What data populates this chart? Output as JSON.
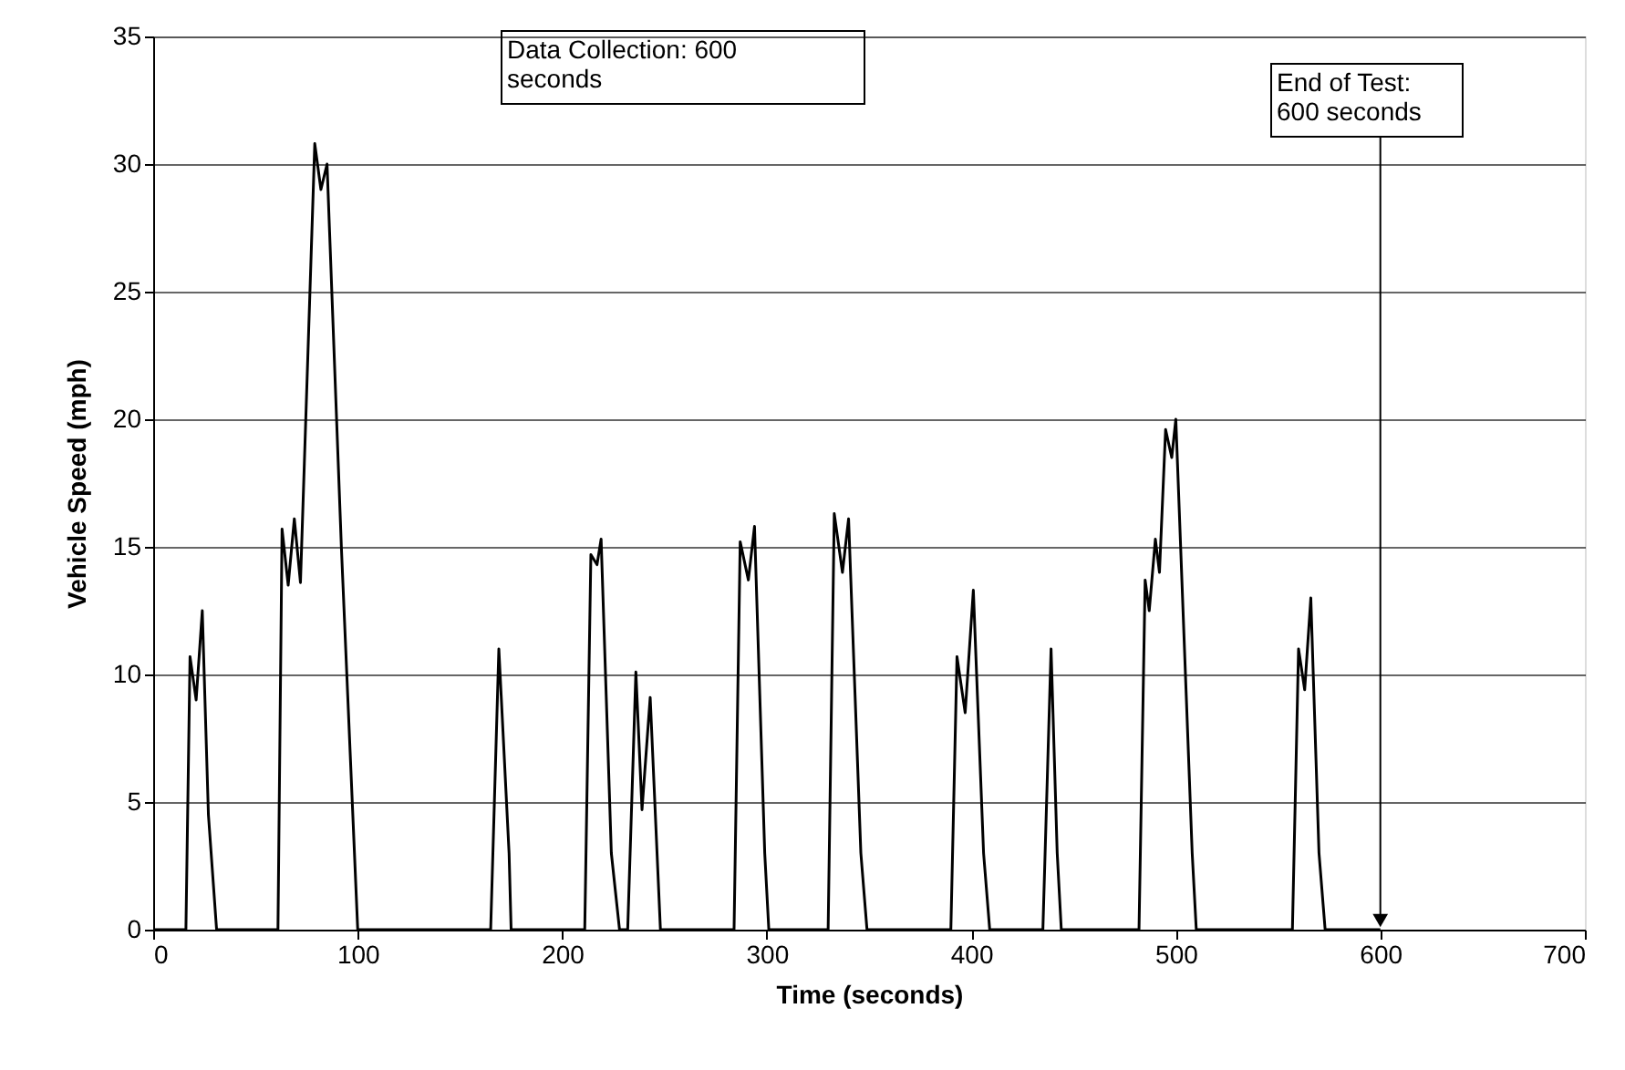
{
  "chart_data": {
    "type": "line",
    "xlabel": "Time (seconds)",
    "ylabel": "Vehicle Speed (mph)",
    "xlim": [
      0,
      700
    ],
    "xticks": [
      0,
      100,
      200,
      300,
      400,
      500,
      600,
      700
    ],
    "ylim": [
      0,
      35
    ],
    "yticks": [
      0,
      5,
      10,
      15,
      20,
      25,
      30,
      35
    ],
    "grid": "y",
    "marker": "none",
    "line_style": "solid",
    "annotations": [
      "Data Collection: 600\nseconds",
      {
        "text": "End of Test:\n600 seconds",
        "x": 600,
        "y": 0
      }
    ],
    "series": [
      {
        "color": "#000000",
        "x": [
          0,
          16,
          18,
          21,
          24,
          27,
          31,
          61,
          63,
          66,
          69,
          72,
          79,
          82,
          85,
          92,
          100,
          165,
          169,
          174,
          175,
          211,
          214,
          217,
          219,
          224,
          228,
          232,
          236,
          239,
          243,
          248,
          284,
          287,
          291,
          294,
          299,
          301,
          330,
          333,
          337,
          340,
          346,
          349,
          390,
          393,
          397,
          401,
          406,
          409,
          435,
          439,
          442,
          444,
          482,
          485,
          487,
          490,
          492,
          495,
          498,
          500,
          508,
          510,
          557,
          560,
          563,
          566,
          570,
          573,
          600
        ],
        "values": [
          0,
          0,
          10.7,
          9,
          12.5,
          4.5,
          0,
          0,
          15.7,
          13.5,
          16.1,
          13.6,
          30.8,
          29,
          30,
          15,
          0,
          0,
          11,
          3,
          0,
          0,
          14.7,
          14.3,
          15.3,
          3,
          0,
          0,
          10.1,
          4.7,
          9.1,
          0,
          0,
          15.2,
          13.7,
          15.8,
          3,
          0,
          0,
          16.3,
          14,
          16.1,
          3,
          0,
          0,
          10.7,
          8.5,
          13.3,
          3,
          0,
          0,
          11,
          3,
          0,
          0,
          13.7,
          12.5,
          15.3,
          14,
          19.6,
          18.5,
          20,
          3,
          0,
          0,
          11,
          9.4,
          13,
          3,
          0,
          0
        ]
      }
    ]
  }
}
